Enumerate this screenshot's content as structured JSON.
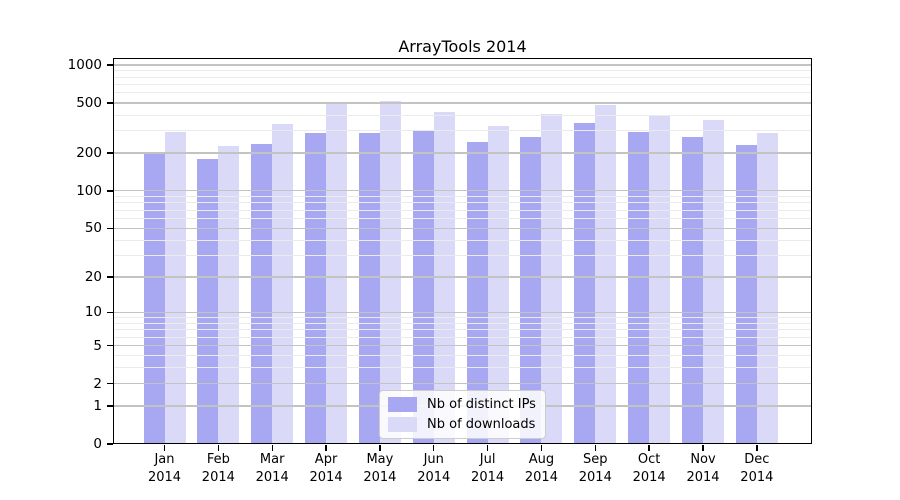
{
  "colors": {
    "ips": "#a8a8f2",
    "downloads": "#dadaf8",
    "grid_major": "#c3c3c3",
    "grid_minor": "#ebebeb",
    "axis": "#000000",
    "legend_border": "#cccccc",
    "background": "#ffffff"
  },
  "legend": {
    "items": [
      {
        "label": "Nb of distinct IPs",
        "series_key": "ips"
      },
      {
        "label": "Nb of downloads",
        "series_key": "downloads"
      }
    ]
  },
  "chart_data": {
    "type": "bar",
    "title": "ArrayTools 2014",
    "y_scale": "log(1+x)",
    "categories": [
      "Jan",
      "Feb",
      "Mar",
      "Apr",
      "May",
      "Jun",
      "Jul",
      "Aug",
      "Sep",
      "Oct",
      "Nov",
      "Dec"
    ],
    "year_label": "2014",
    "series": [
      {
        "name": "Nb of distinct IPs",
        "color_key": "ips",
        "values": [
          205,
          178,
          235,
          288,
          288,
          298,
          245,
          268,
          345,
          292,
          266,
          231
        ]
      },
      {
        "name": "Nb of downloads",
        "color_key": "downloads",
        "values": [
          292,
          227,
          340,
          505,
          518,
          423,
          328,
          410,
          478,
          405,
          365,
          290
        ]
      }
    ],
    "y_ticks": [
      0,
      1,
      2,
      5,
      10,
      20,
      50,
      100,
      200,
      500,
      1000
    ],
    "y_minor_gridlines": [
      3,
      4,
      6,
      7,
      8,
      9,
      30,
      40,
      60,
      70,
      80,
      90,
      300,
      400,
      600,
      700,
      800,
      900
    ],
    "ylim": [
      0,
      1130
    ],
    "xlabel": "",
    "ylabel": "",
    "grid": true,
    "legend_position": "bottom-center"
  }
}
